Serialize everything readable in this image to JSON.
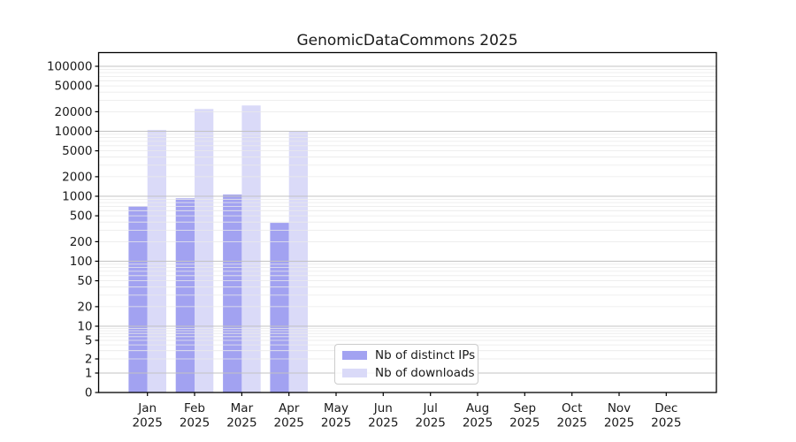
{
  "title": "GenomicDataCommons 2025",
  "chart_data": {
    "type": "bar",
    "title": "GenomicDataCommons 2025",
    "xlabel": "",
    "ylabel": "",
    "categories": [
      "Jan",
      "Feb",
      "Mar",
      "Apr",
      "May",
      "Jun",
      "Jul",
      "Aug",
      "Sep",
      "Oct",
      "Nov",
      "Dec"
    ],
    "category_year": "2025",
    "series": [
      {
        "name": "Nb of distinct IPs",
        "color": "#a2a2f1",
        "values": [
          700,
          930,
          1060,
          390,
          null,
          null,
          null,
          null,
          null,
          null,
          null,
          null
        ]
      },
      {
        "name": "Nb of downloads",
        "color": "#dadaf8",
        "values": [
          10500,
          22000,
          25000,
          9900,
          null,
          null,
          null,
          null,
          null,
          null,
          null,
          null
        ]
      }
    ],
    "yticks": [
      0,
      1,
      2,
      5,
      10,
      20,
      50,
      100,
      200,
      500,
      1000,
      2000,
      5000,
      10000,
      20000,
      50000,
      100000
    ],
    "ylim": [
      0,
      160000
    ],
    "yscale": "symlog-like",
    "grid": "horizontal major and minor gridlines",
    "legend_position": "bottom-center inside plot"
  },
  "colors": {
    "axis": "#000000",
    "grid_major": "#c3c3c3",
    "grid_minor": "#e9e9e9",
    "text": "#1a1a1a",
    "background": "#ffffff"
  }
}
